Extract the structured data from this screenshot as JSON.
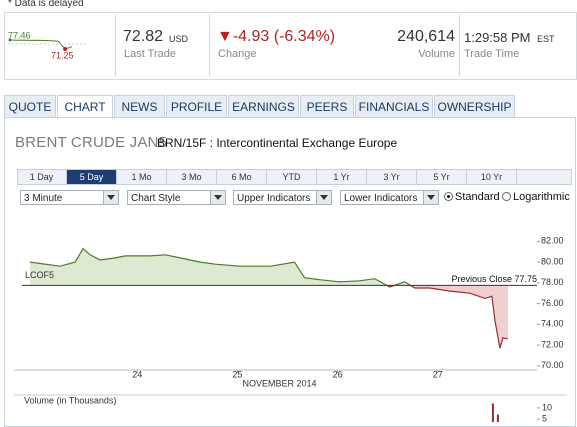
{
  "notice": "* Data is delayed",
  "quote": {
    "sparkline": {
      "values": [
        77.46,
        77.3,
        77.38,
        77.2,
        77.32,
        77.1,
        76.95,
        76.6,
        71.25,
        72.82
      ],
      "color": "#4d7a2b",
      "low_color": "#b22222"
    },
    "last_trade": {
      "price": "72.82",
      "currency": "USD",
      "label": "Last Trade"
    },
    "change": {
      "text": "▼-4.93 (-6.34%)",
      "label": "Change"
    },
    "volume": {
      "value": "240,614",
      "label": "Volume"
    },
    "trade_time": {
      "time": "1:29:58 PM",
      "zone": "EST",
      "label": "Trade Time"
    }
  },
  "tabs": {
    "list": [
      "QUOTE",
      "CHART",
      "NEWS",
      "PROFILE",
      "EARNINGS",
      "PEERS",
      "FINANCIALS",
      "OWNERSHIP"
    ],
    "active": 1
  },
  "header": {
    "title": "BRENT CRUDE JAN5",
    "subtitle": "BRN/15F : Intercontinental Exchange Europe"
  },
  "ranges": {
    "list": [
      "1 Day",
      "5 Day",
      "1 Mo",
      "3 Mo",
      "6 Mo",
      "YTD",
      "1 Yr",
      "3 Yr",
      "5 Yr",
      "10 Yr"
    ],
    "active": 1
  },
  "selects": [
    "3 Minute",
    "Chart Style",
    "Upper Indicators",
    "Lower Indicators"
  ],
  "scale_options": {
    "list": [
      "Standard",
      "Logarithmic"
    ],
    "selected": 0
  },
  "chart_data": [
    {
      "type": "line",
      "x": [
        22.93,
        23.23,
        23.38,
        23.46,
        23.53,
        23.63,
        23.78,
        23.88,
        24.13,
        24.28,
        24.43,
        24.63,
        24.78,
        25.03,
        25.33,
        25.57,
        25.67,
        25.82,
        26.02,
        26.22,
        26.37,
        26.52,
        26.67,
        26.77,
        26.92,
        27.12,
        27.32,
        27.47,
        27.54,
        27.57,
        27.62,
        27.65,
        27.7
      ],
      "series": [
        {
          "name": "LCOF5",
          "color": "#4d7a2b",
          "fill": "#dde9d1",
          "color_below": "#9e2a2a",
          "fill_below": "#efcfcf",
          "values": [
            80.0,
            79.6,
            80.0,
            81.3,
            80.7,
            80.2,
            80.4,
            80.6,
            80.6,
            80.7,
            80.4,
            80.0,
            79.8,
            79.6,
            79.6,
            80.0,
            78.5,
            78.3,
            78.1,
            78.2,
            78.4,
            77.6,
            78.1,
            77.5,
            77.5,
            77.2,
            77.0,
            76.5,
            76.7,
            74.4,
            71.7,
            72.7,
            72.6
          ]
        }
      ],
      "xlim": [
        22.85,
        27.99
      ],
      "xticks": [
        24,
        25,
        26,
        27
      ],
      "xlabel": "NOVEMBER 2014",
      "ylim": [
        69.6,
        82.9
      ],
      "yticks": [
        {
          "value": 70,
          "label": "70.00"
        },
        {
          "value": 72,
          "label": "72.00"
        },
        {
          "value": 74,
          "label": "74.00"
        },
        {
          "value": 76,
          "label": "76.00"
        },
        {
          "value": 78,
          "label": "78.00"
        },
        {
          "value": 80,
          "label": "80.00"
        },
        {
          "value": 82,
          "label": "82.00"
        }
      ],
      "reference": {
        "label": "Previous Close 77.75",
        "value": 77.75
      }
    },
    {
      "type": "bar",
      "title": "Volume (in Thousands)",
      "x": [
        27.55,
        27.6
      ],
      "values": [
        12,
        7
      ],
      "color": "#9e2a2a",
      "xlim": [
        22.85,
        27.99
      ],
      "ylim": [
        0,
        13.6
      ],
      "yticks": [
        5,
        10
      ]
    }
  ]
}
